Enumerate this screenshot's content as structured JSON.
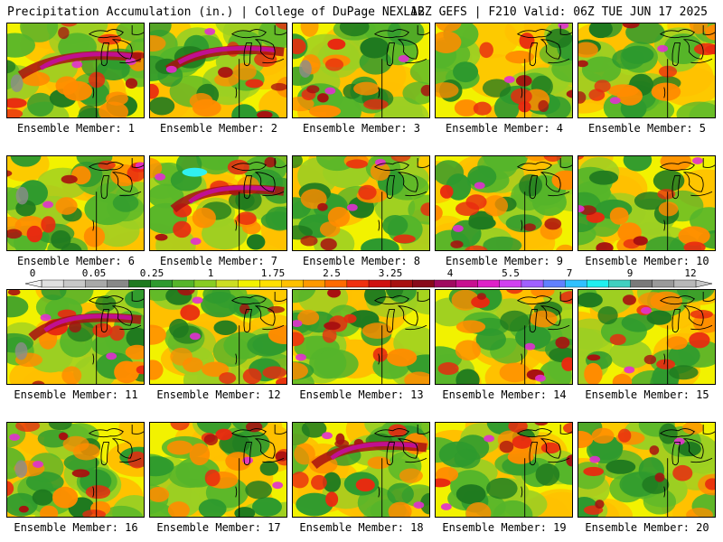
{
  "header": {
    "title_left": "Precipitation Accumulation (in.) | College of DuPage NEXLAB",
    "title_right": "12Z GEFS | F210 Valid: 06Z TUE JUN 17 2025"
  },
  "panels": [
    {
      "label": "Ensemble Member: 1"
    },
    {
      "label": "Ensemble Member: 2"
    },
    {
      "label": "Ensemble Member: 3"
    },
    {
      "label": "Ensemble Member: 4"
    },
    {
      "label": "Ensemble Member: 5"
    },
    {
      "label": "Ensemble Member: 6"
    },
    {
      "label": "Ensemble Member: 7"
    },
    {
      "label": "Ensemble Member: 8"
    },
    {
      "label": "Ensemble Member: 9"
    },
    {
      "label": "Ensemble Member: 10"
    },
    {
      "label": "Ensemble Member: 11"
    },
    {
      "label": "Ensemble Member: 12"
    },
    {
      "label": "Ensemble Member: 13"
    },
    {
      "label": "Ensemble Member: 14"
    },
    {
      "label": "Ensemble Member: 15"
    },
    {
      "label": "Ensemble Member: 16"
    },
    {
      "label": "Ensemble Member: 17"
    },
    {
      "label": "Ensemble Member: 18"
    },
    {
      "label": "Ensemble Member: 19"
    },
    {
      "label": "Ensemble Member: 20"
    }
  ],
  "colorbar": {
    "tick_labels": [
      "0",
      "0.05",
      "0.25",
      "1",
      "1.75",
      "2.5",
      "3.25",
      "4",
      "5.5",
      "7",
      "9",
      "12"
    ],
    "colors": [
      "#e0e0e0",
      "#c8c8c8",
      "#a8a8a8",
      "#888888",
      "#1f7a1f",
      "#2e9a2e",
      "#55b52a",
      "#88cc22",
      "#ccdd22",
      "#f2f200",
      "#ffe000",
      "#ffc000",
      "#ff9900",
      "#ff6a00",
      "#f03010",
      "#d01010",
      "#a81010",
      "#880a1a",
      "#a00a60",
      "#c81090",
      "#e020c8",
      "#d040f0",
      "#a060ff",
      "#6080ff",
      "#30c0ff",
      "#20f0f0",
      "#40d0c0",
      "#7a7a7a",
      "#9a9a9a",
      "#b8b8b8"
    ]
  }
}
